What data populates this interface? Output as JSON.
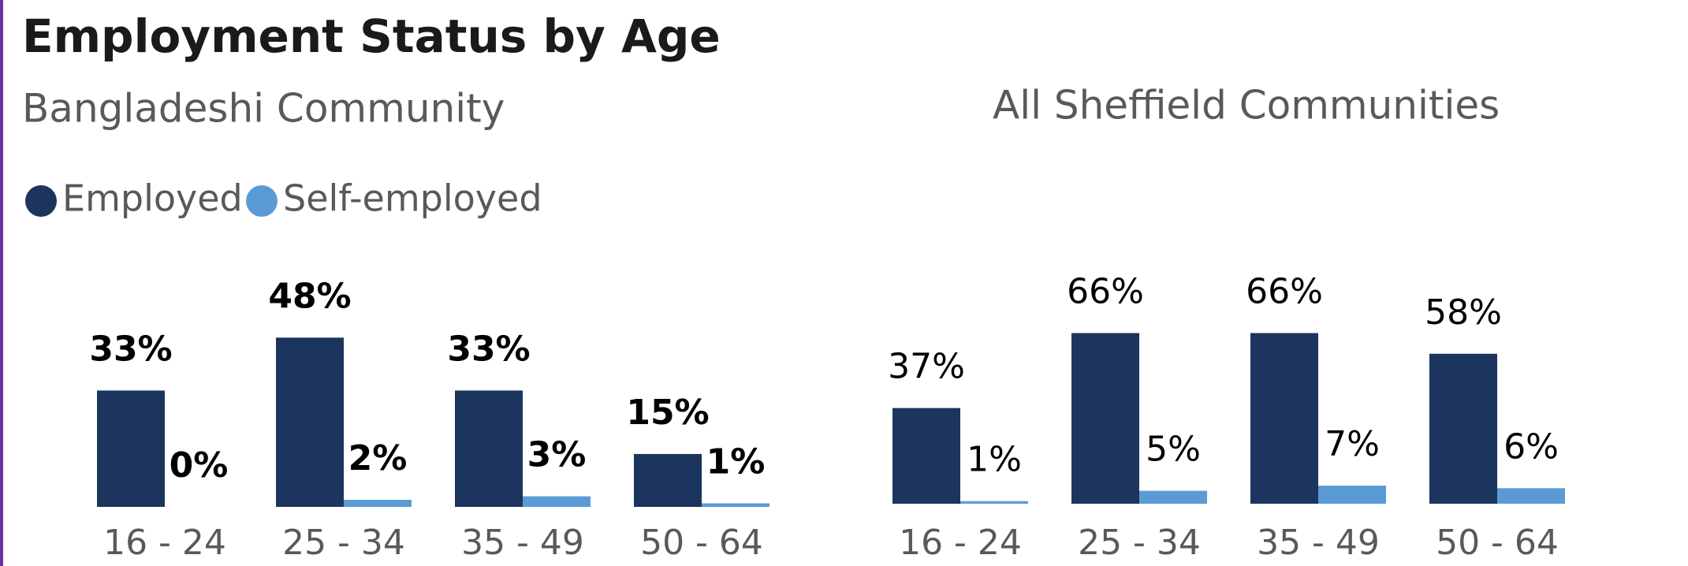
{
  "title": "Employment Status by Age",
  "chart_data": [
    {
      "type": "bar",
      "subtitle": "Bangladeshi Community",
      "categories": [
        "16 - 24",
        "25 - 34",
        "35 - 49",
        "50 - 64"
      ],
      "series": [
        {
          "name": "Employed",
          "color": "#1c355e",
          "values": [
            33,
            48,
            33,
            15
          ],
          "value_labels": [
            "33%",
            "48%",
            "33%",
            "15%"
          ]
        },
        {
          "name": "Self-employed",
          "color": "#5b9bd5",
          "values": [
            0,
            2,
            3,
            1
          ],
          "value_labels": [
            "0%",
            "2%",
            "3%",
            "1%"
          ]
        }
      ],
      "ylim": [
        0,
        55
      ],
      "label_weight": "bold"
    },
    {
      "type": "bar",
      "subtitle": "All Sheffield Communities",
      "categories": [
        "16 - 24",
        "25 - 34",
        "35 - 49",
        "50 - 64"
      ],
      "series": [
        {
          "color": "#1c355e",
          "values": [
            37,
            66,
            66,
            58
          ],
          "value_labels": [
            "37%",
            "66%",
            "66%",
            "58%"
          ]
        },
        {
          "color": "#5b9bd5",
          "values": [
            1,
            5,
            7,
            6
          ],
          "value_labels": [
            "1%",
            "5%",
            "7%",
            "6%"
          ]
        }
      ],
      "ylim": [
        0,
        75
      ],
      "label_weight": "normal"
    }
  ]
}
